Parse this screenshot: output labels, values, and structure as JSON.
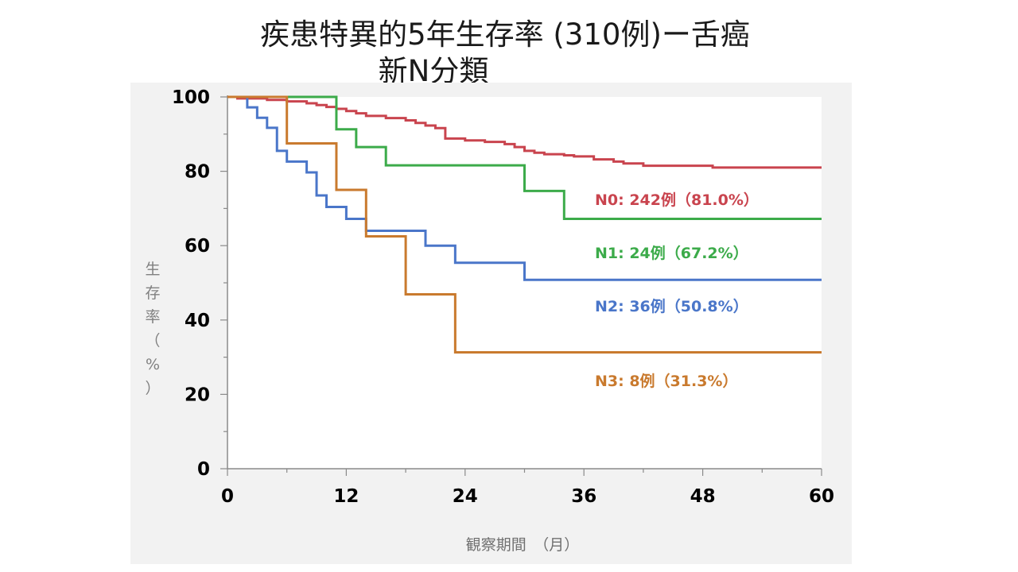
{
  "title_line1": "疾患特異的5年生存率 (310例)ー舌癌",
  "title_line2": "新N分類",
  "chart_data": {
    "type": "line",
    "step": true,
    "xlabel": "観察期間　（月）",
    "ylabel": "生存率（%）",
    "xlim": [
      0,
      60
    ],
    "ylim": [
      0,
      100
    ],
    "xticks": [
      "0",
      "12",
      "24",
      "36",
      "48",
      "60"
    ],
    "yticks": [
      "0",
      "20",
      "40",
      "60",
      "80",
      "100"
    ],
    "grid": false,
    "series": [
      {
        "name": "N0",
        "label": "N0: 242例（81.0%）",
        "color": "#c9444e",
        "x": [
          0,
          1,
          4,
          6,
          8,
          9,
          10,
          11,
          12,
          13,
          14,
          16,
          18,
          19,
          20,
          21,
          22,
          24,
          26,
          28,
          29,
          30,
          31,
          32,
          34,
          35,
          37,
          39,
          40,
          42,
          44,
          47,
          49,
          51,
          60
        ],
        "y": [
          100,
          99.6,
          99.2,
          98.8,
          98.3,
          97.8,
          97.3,
          96.8,
          96.2,
          95.6,
          94.9,
          94.3,
          93.7,
          93.0,
          92.3,
          91.6,
          88.8,
          88.3,
          87.9,
          87.3,
          86.5,
          85.5,
          85.0,
          84.6,
          84.3,
          84.0,
          83.2,
          82.6,
          82.1,
          81.5,
          81.5,
          81.5,
          81.0,
          81.0,
          81.0
        ]
      },
      {
        "name": "N1",
        "label": "N1: 24例（67.2%）",
        "color": "#3cab4a",
        "x": [
          0,
          11,
          13,
          16,
          30,
          34,
          60
        ],
        "y": [
          100,
          91.3,
          86.5,
          81.6,
          74.7,
          67.2,
          67.2
        ]
      },
      {
        "name": "N2",
        "label": "N2: 36例（50.8%）",
        "color": "#4a76c9",
        "x": [
          0,
          2,
          3,
          4,
          5,
          6,
          8,
          9,
          10,
          12,
          14,
          20,
          23,
          30,
          60
        ],
        "y": [
          100,
          97.2,
          94.4,
          91.7,
          85.5,
          82.6,
          79.7,
          73.5,
          70.4,
          67.2,
          64.0,
          60.0,
          55.4,
          50.8,
          50.8
        ]
      },
      {
        "name": "N3",
        "label": "N3: 8例（31.3%）",
        "color": "#c97a2e",
        "x": [
          0,
          6,
          11,
          14,
          18,
          23,
          60
        ],
        "y": [
          100,
          87.5,
          75.0,
          62.5,
          46.9,
          31.3,
          31.3
        ]
      }
    ]
  }
}
